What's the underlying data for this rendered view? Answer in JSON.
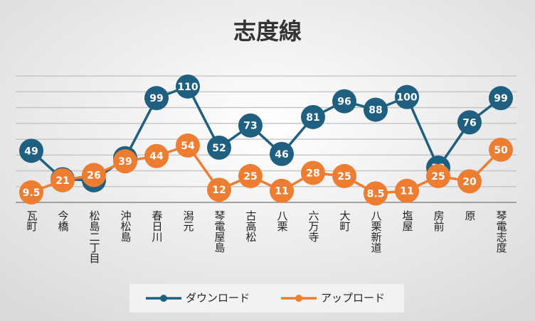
{
  "chart_data": {
    "type": "line",
    "title": "志度線",
    "categories": [
      "瓦町",
      "今橋",
      "松島二丁目",
      "沖松島",
      "春日川",
      "潟元",
      "琴電屋島",
      "古高松",
      "八栗",
      "六万寺",
      "大町",
      "八栗新道",
      "塩屋",
      "房前",
      "原",
      "琴電志度"
    ],
    "series": [
      {
        "name": "ダウンロード",
        "color": "#1f5f80",
        "values": [
          49,
          22,
          21,
          42,
          99,
          110,
          52,
          73,
          46,
          81,
          96,
          88,
          100,
          33,
          76,
          99
        ]
      },
      {
        "name": "アップロード",
        "color": "#ed7d31",
        "values": [
          9.5,
          21,
          26,
          39,
          44,
          54,
          12,
          25,
          11,
          28,
          25,
          8.5,
          11,
          25,
          20,
          50
        ]
      }
    ],
    "ylim": [
      0,
      120
    ],
    "yticks": [
      0,
      15,
      30,
      45,
      60,
      75,
      90,
      105,
      120
    ],
    "grid": true,
    "legend": "bottom"
  }
}
